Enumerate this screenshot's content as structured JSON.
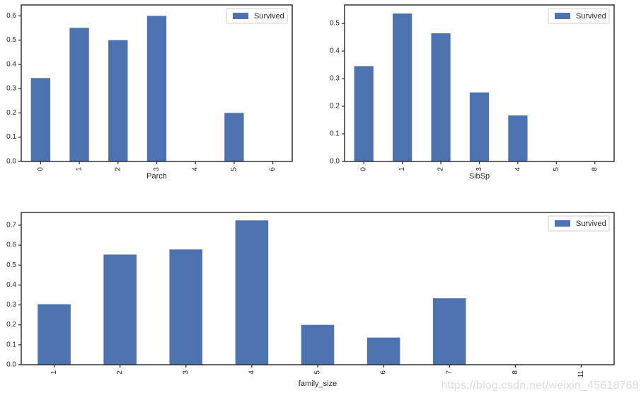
{
  "watermark": "https://blog.csdn.net/weixin_45618768",
  "colors": {
    "bar": "#4c72b0",
    "spine": "#262626",
    "tick_label": "#262626",
    "axis_label": "#262626",
    "legend_border": "#cccccc",
    "legend_bg": "#ffffff",
    "legend_text": "#262626",
    "watermark": "#dcdcdc",
    "background": "#ffffff"
  },
  "chart_data": [
    {
      "type": "bar",
      "title": "",
      "xlabel": "Parch",
      "ylabel": "",
      "legend": {
        "label": "Survived",
        "position": "upper right"
      },
      "categories": [
        "0",
        "1",
        "2",
        "3",
        "4",
        "5",
        "6"
      ],
      "values": [
        0.3437,
        0.5508,
        0.5,
        0.6,
        0.0,
        0.2,
        0.0
      ],
      "yticks": [
        "0.0",
        "0.1",
        "0.2",
        "0.3",
        "0.4",
        "0.5",
        "0.6"
      ],
      "ylim": [
        0,
        0.645
      ],
      "grid": false,
      "bar_width_frac": 0.5,
      "xtick_rotation": 90
    },
    {
      "type": "bar",
      "title": "",
      "xlabel": "SibSp",
      "ylabel": "",
      "legend": {
        "label": "Survived",
        "position": "upper right"
      },
      "categories": [
        "0",
        "1",
        "2",
        "3",
        "4",
        "5",
        "8"
      ],
      "values": [
        0.3454,
        0.5359,
        0.4643,
        0.25,
        0.1667,
        0.0,
        0.0
      ],
      "yticks": [
        "0.0",
        "0.1",
        "0.2",
        "0.3",
        "0.4",
        "0.5"
      ],
      "ylim": [
        0,
        0.567
      ],
      "grid": false,
      "bar_width_frac": 0.5,
      "xtick_rotation": 90
    },
    {
      "type": "bar",
      "title": "",
      "xlabel": "family_size",
      "ylabel": "",
      "legend": {
        "label": "Survived",
        "position": "upper right"
      },
      "categories": [
        "1",
        "2",
        "3",
        "4",
        "5",
        "6",
        "7",
        "8",
        "11"
      ],
      "values": [
        0.3035,
        0.5528,
        0.5784,
        0.7241,
        0.2,
        0.1364,
        0.3333,
        0.0,
        0.0
      ],
      "yticks": [
        "0.0",
        "0.1",
        "0.2",
        "0.3",
        "0.4",
        "0.5",
        "0.6",
        "0.7"
      ],
      "ylim": [
        0,
        0.764
      ],
      "grid": false,
      "bar_width_frac": 0.5,
      "xtick_rotation": 90
    }
  ]
}
